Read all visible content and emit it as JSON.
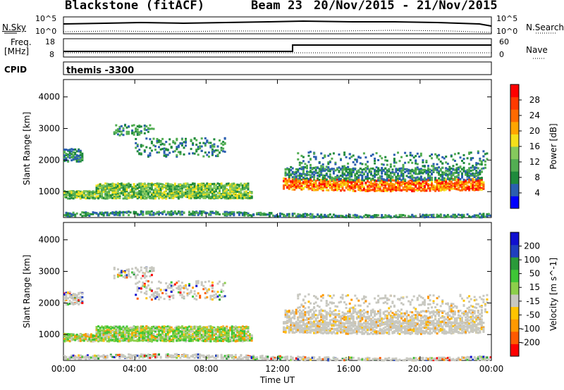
{
  "header": {
    "station": "Blackstone (fitACF)",
    "beam": "Beam 23",
    "dates": "20/Nov/2015 - 21/Nov/2015"
  },
  "side_labels": {
    "nsky": "N.Sky",
    "nsearch": "N.Search",
    "freq": "Freq.",
    "mhz": "[MHz]",
    "nave": "Nave",
    "cpid": "CPID",
    "cpid_value": "themis -3300",
    "exp_top": "10^5",
    "exp_bottom": "10^0",
    "freq_top": "18",
    "freq_bottom": "8",
    "nave_top": "60",
    "nave_bottom": "0"
  },
  "colors": {
    "power_scale": [
      "#0000ff",
      "#2b5fb0",
      "#1f8a3c",
      "#52ad52",
      "#85c95d",
      "#f5e01a",
      "#ffa500",
      "#ff6a00",
      "#ff3a00",
      "#ff0000"
    ],
    "velocity_scale": [
      "#ff0000",
      "#ff5a00",
      "#ff9900",
      "#ffc400",
      "#c8c8c0",
      "#8ccf4a",
      "#3ec636",
      "#2a9a3a",
      "#1f3fbf",
      "#1010d0"
    ]
  },
  "chart_data": [
    {
      "type": "heatmap",
      "name": "power",
      "xlabel": "Time UT",
      "ylabel": "Slant Range [km]",
      "xlim": [
        0,
        24
      ],
      "ylim": [
        180,
        4550
      ],
      "x_ticks": [
        "00:00",
        "04:00",
        "08:00",
        "12:00",
        "16:00",
        "20:00",
        "00:00"
      ],
      "y_ticks": [
        1000,
        2000,
        3000,
        4000
      ],
      "colorbar": {
        "label": "Power [dB]",
        "ticks": [
          4,
          8,
          12,
          16,
          20,
          24,
          28
        ]
      }
    },
    {
      "type": "heatmap",
      "name": "velocity",
      "xlabel": "Time UT",
      "ylabel": "Slant Range [km]",
      "xlim": [
        0,
        24
      ],
      "ylim": [
        180,
        4550
      ],
      "x_ticks": [
        "00:00",
        "04:00",
        "08:00",
        "12:00",
        "16:00",
        "20:00",
        "00:00"
      ],
      "y_ticks": [
        1000,
        2000,
        3000,
        4000
      ],
      "colorbar": {
        "label": "Velocity [m s^-1]",
        "ticks": [
          200,
          100,
          50,
          15,
          -15,
          -50,
          -100,
          -200
        ]
      }
    }
  ]
}
